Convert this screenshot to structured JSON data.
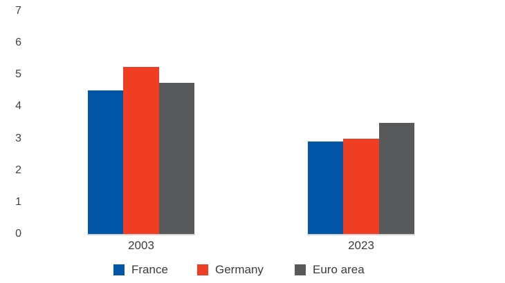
{
  "chart_data": {
    "type": "bar",
    "title": "",
    "xlabel": "",
    "ylabel": "",
    "categories": [
      "2003",
      "2023"
    ],
    "series": [
      {
        "name": "France",
        "color": "#0156A8",
        "values": [
          4.5,
          2.9
        ]
      },
      {
        "name": "Germany",
        "color": "#EF3E23",
        "values": [
          5.25,
          3.0
        ]
      },
      {
        "name": "Euro area",
        "color": "#58595B",
        "values": [
          4.75,
          3.5
        ]
      }
    ],
    "ylim": [
      0,
      7
    ],
    "yticks": [
      0,
      1,
      2,
      3,
      4,
      5,
      6,
      7
    ],
    "grid": false,
    "legend_position": "bottom",
    "colors": {
      "tick_text": "#414042",
      "label_text": "#3b3b3c",
      "baseline": "#d6d6d6",
      "background": "#ffffff"
    }
  }
}
